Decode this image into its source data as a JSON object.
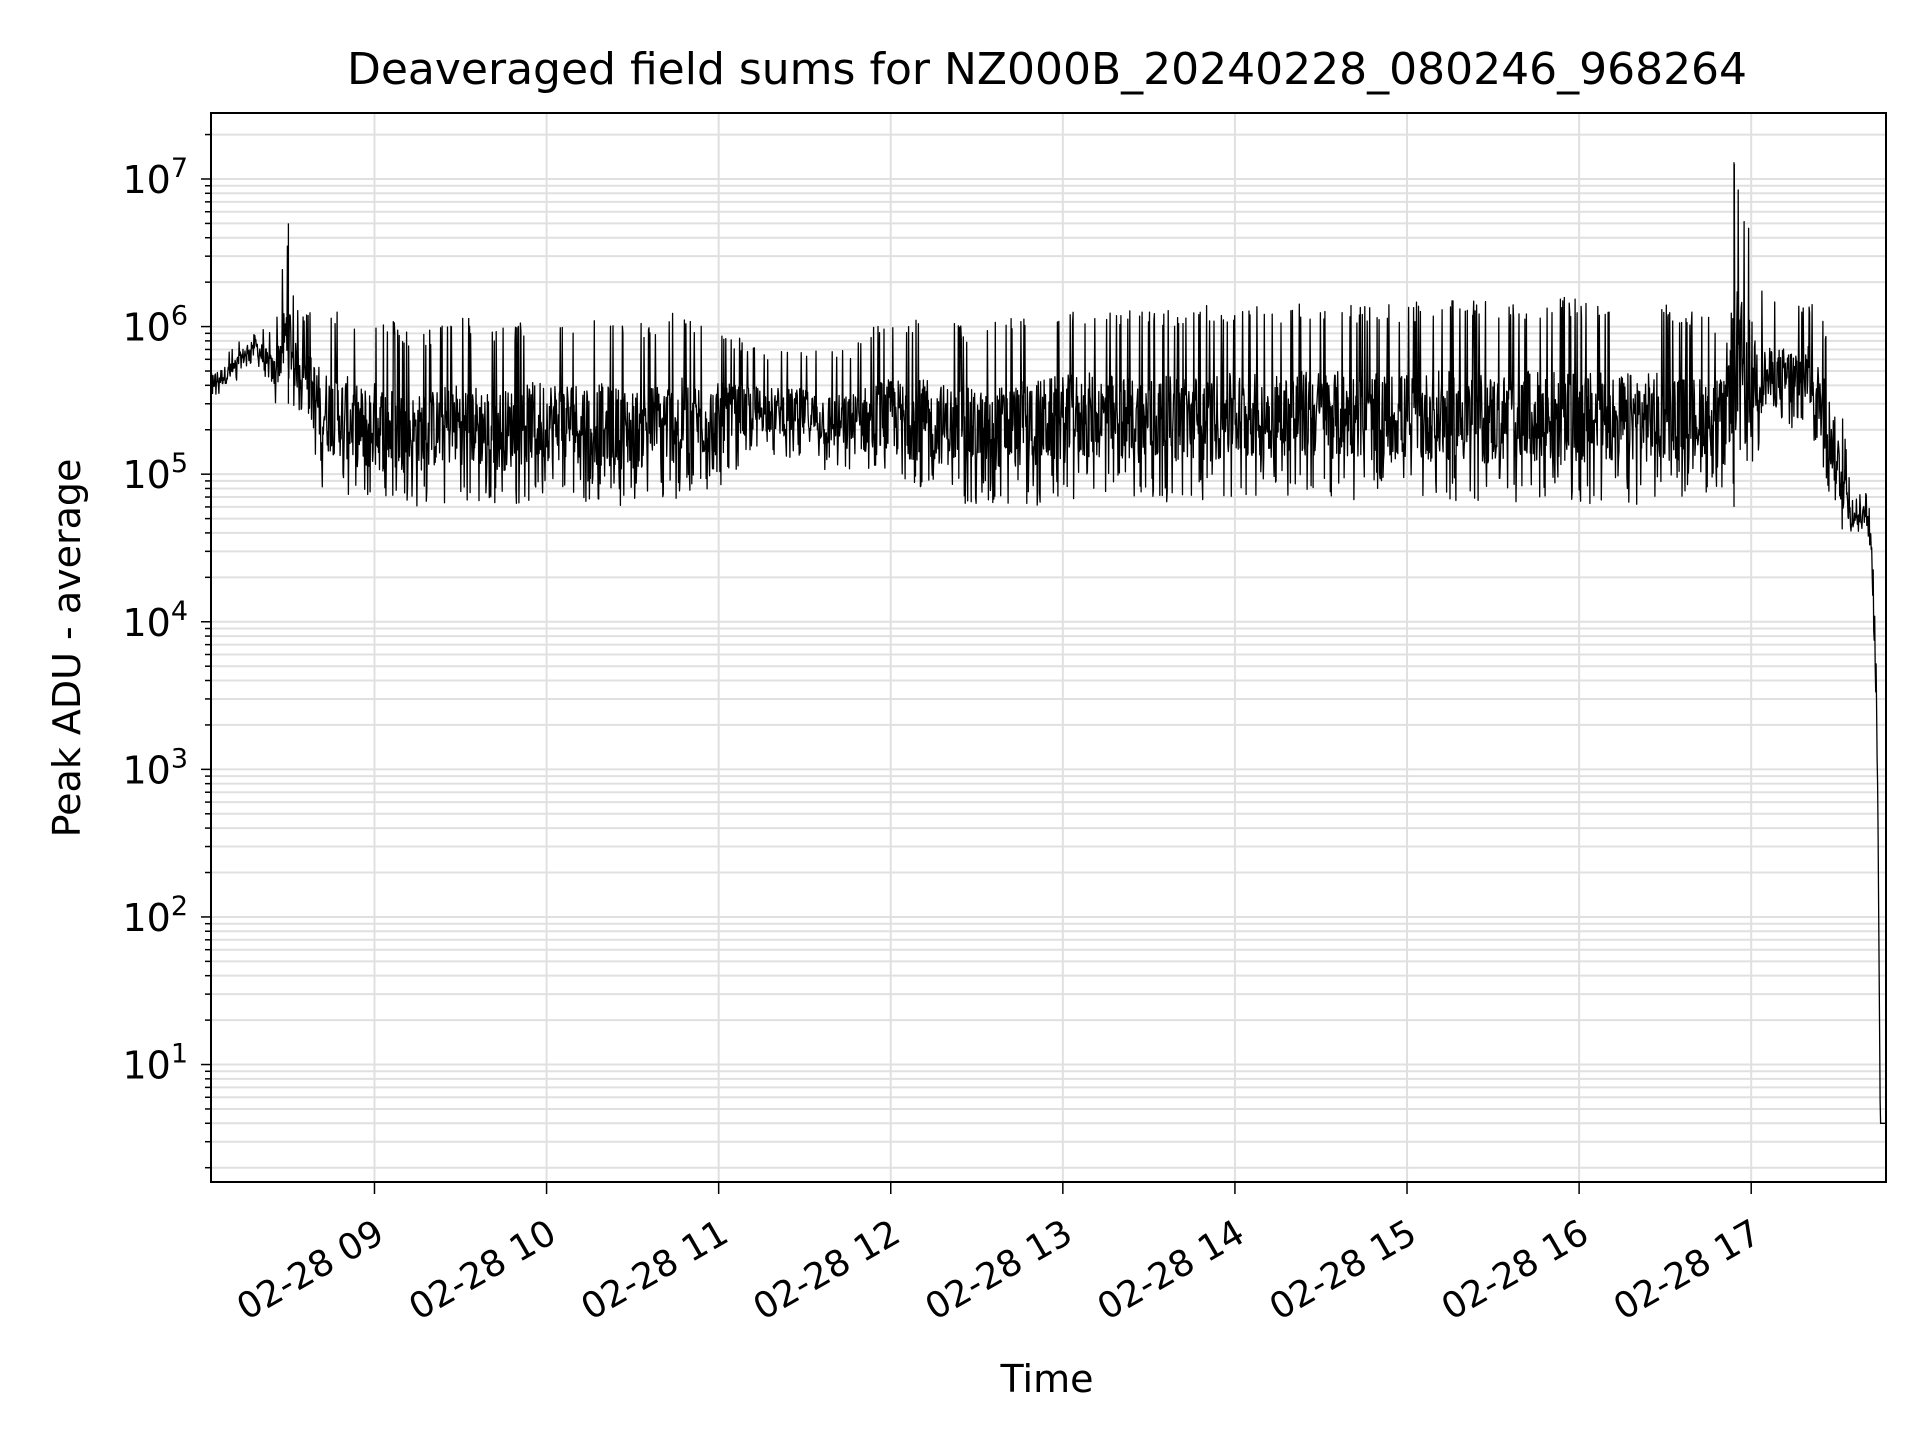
{
  "chart_data": {
    "type": "line",
    "title": "Deaveraged field sums for NZ000B_20240228_080246_968264",
    "xlabel": "Time",
    "ylabel": "Peak ADU - average",
    "yscale": "log",
    "ylim": [
      1.6,
      28000000
    ],
    "xlim": [
      "02-28 08:03",
      "02-28 17:47"
    ],
    "grid": true,
    "line_color": "#000000",
    "grid_color": "#e0e0e0",
    "x_ticks": [
      "02-28 09",
      "02-28 10",
      "02-28 11",
      "02-28 12",
      "02-28 13",
      "02-28 14",
      "02-28 15",
      "02-28 16",
      "02-28 17"
    ],
    "y_ticks": [
      {
        "base": "10",
        "exp": "1"
      },
      {
        "base": "10",
        "exp": "2"
      },
      {
        "base": "10",
        "exp": "3"
      },
      {
        "base": "10",
        "exp": "4"
      },
      {
        "base": "10",
        "exp": "5"
      },
      {
        "base": "10",
        "exp": "6"
      },
      {
        "base": "10",
        "exp": "7"
      }
    ],
    "series": [
      {
        "x": [
          "02-28 08:03",
          "02-28 08:10",
          "02-28 08:18",
          "02-28 08:25",
          "02-28 08:30",
          "02-28 08:32",
          "02-28 08:35",
          "02-28 08:37",
          "02-28 08:42",
          "02-28 08:50",
          "02-28 08:55",
          "02-28 09:00",
          "02-28 09:15",
          "02-28 09:30",
          "02-28 09:45",
          "02-28 10:00",
          "02-28 10:15",
          "02-28 10:30",
          "02-28 10:45",
          "02-28 11:00",
          "02-28 11:15",
          "02-28 11:30",
          "02-28 11:45",
          "02-28 11:55",
          "02-28 12:10",
          "02-28 12:30",
          "02-28 12:50",
          "02-28 13:10",
          "02-28 13:30",
          "02-28 13:50",
          "02-28 14:10",
          "02-28 14:30",
          "02-28 14:50",
          "02-28 15:10",
          "02-28 15:30",
          "02-28 15:50",
          "02-28 16:10",
          "02-28 16:30",
          "02-28 16:50",
          "02-28 16:54",
          "02-28 17:05",
          "02-28 17:20",
          "02-28 17:25",
          "02-28 17:31",
          "02-28 17:35",
          "02-28 17:40",
          "02-28 17:42",
          "02-28 17:44",
          "02-28 17:45",
          "02-28 17:47"
        ],
        "low": [
          320000,
          380000,
          600000,
          300000,
          300000,
          280000,
          260000,
          150000,
          80000,
          70000,
          60000,
          55000,
          60000,
          65000,
          60000,
          70000,
          65000,
          60000,
          65000,
          80000,
          140000,
          120000,
          90000,
          80000,
          70000,
          60000,
          60000,
          70000,
          65000,
          65000,
          70000,
          70000,
          65000,
          65000,
          60000,
          60000,
          60000,
          65000,
          80000,
          60000,
          180000,
          200000,
          100000,
          40000,
          35000,
          45000,
          20000,
          1000,
          4,
          4
        ],
        "high": [
          600000,
          700000,
          1100000,
          900000,
          5000000,
          1400000,
          1200000,
          1500000,
          1400000,
          1300000,
          1100000,
          1300000,
          900000,
          1200000,
          1000000,
          1200000,
          1200000,
          1000000,
          1300000,
          1000000,
          700000,
          700000,
          700000,
          1100000,
          1200000,
          1000000,
          1300000,
          1400000,
          1300000,
          1400000,
          1400000,
          1500000,
          1400000,
          1500000,
          1500000,
          1600000,
          1500000,
          1450000,
          1100000,
          13000000,
          1500000,
          1500000,
          1200000,
          400000,
          70000,
          75000,
          50000,
          3000,
          4,
          4
        ]
      }
    ]
  }
}
